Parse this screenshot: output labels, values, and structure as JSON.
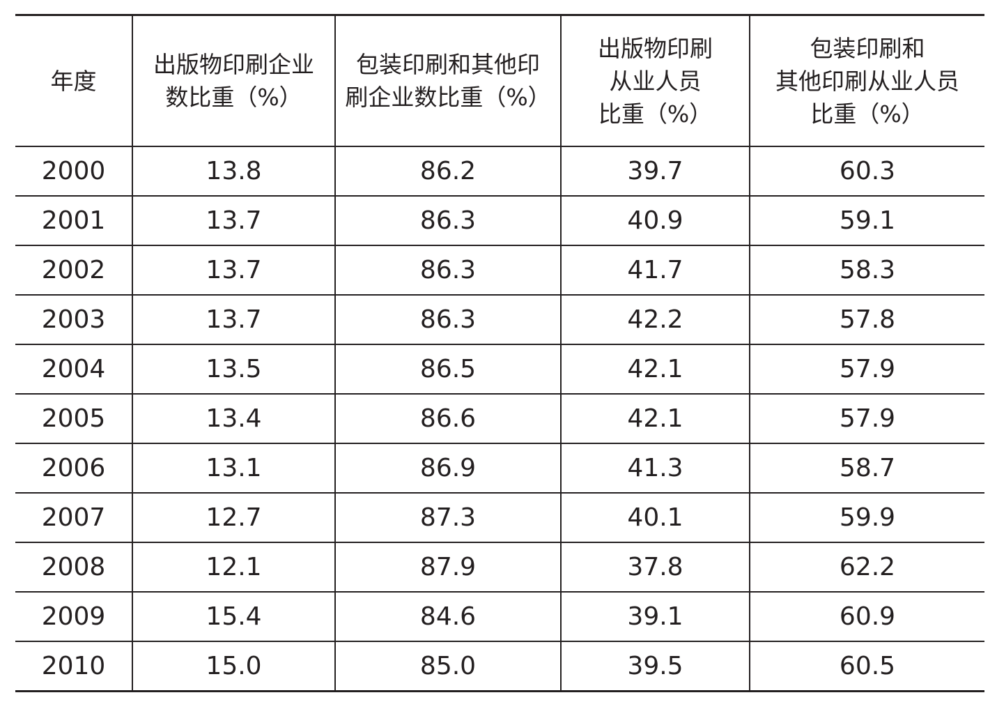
{
  "table": {
    "header": [
      [
        "年度"
      ],
      [
        "出版物印刷企业",
        "数比重（%）"
      ],
      [
        "包装印刷和其他印",
        "刷企业数比重（%）"
      ],
      [
        "出版物印刷",
        "从业人员",
        "比重（%）"
      ],
      [
        "包装印刷和",
        "其他印刷从业人员",
        "比重（%）"
      ]
    ],
    "rows": [
      [
        "2000",
        "13.8",
        "86.2",
        "39.7",
        "60.3"
      ],
      [
        "2001",
        "13.7",
        "86.3",
        "40.9",
        "59.1"
      ],
      [
        "2002",
        "13.7",
        "86.3",
        "41.7",
        "58.3"
      ],
      [
        "2003",
        "13.7",
        "86.3",
        "42.2",
        "57.8"
      ],
      [
        "2004",
        "13.5",
        "86.5",
        "42.1",
        "57.9"
      ],
      [
        "2005",
        "13.4",
        "86.6",
        "42.1",
        "57.9"
      ],
      [
        "2006",
        "13.1",
        "86.9",
        "41.3",
        "58.7"
      ],
      [
        "2007",
        "12.7",
        "87.3",
        "40.1",
        "59.9"
      ],
      [
        "2008",
        "12.1",
        "87.9",
        "37.8",
        "62.2"
      ],
      [
        "2009",
        "15.4",
        "84.6",
        "39.1",
        "60.9"
      ],
      [
        "2010",
        "15.0",
        "85.0",
        "39.5",
        "60.5"
      ]
    ]
  }
}
